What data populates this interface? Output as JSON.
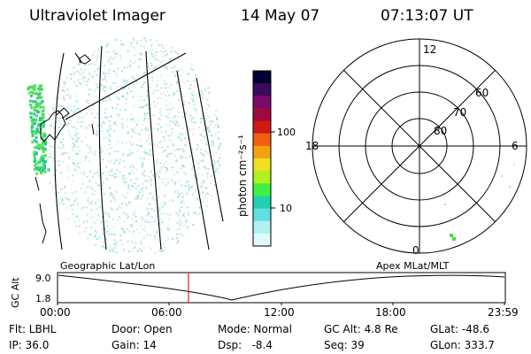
{
  "header": {
    "instrument": "Ultraviolet Imager",
    "date": "14 May 07",
    "time": "07:13:07 UT"
  },
  "colorbar": {
    "unit_label": "photon cm⁻²s⁻¹",
    "ticks": [
      "100",
      "10"
    ],
    "colors": [
      "#000033",
      "#3b0a5c",
      "#7a0a6a",
      "#a00a3a",
      "#d01a10",
      "#f06010",
      "#f4a010",
      "#f0e020",
      "#b0f020",
      "#40f040",
      "#20d0b0",
      "#60e0e0",
      "#b0f0f0",
      "#e0fafa"
    ]
  },
  "polar": {
    "mlt_labels": {
      "top": "12",
      "left": "18",
      "right": "6",
      "bottom": "0"
    },
    "lat_labels": [
      "60",
      "70",
      "80"
    ]
  },
  "orbit": {
    "left_label": "Geographic Lat/Lon",
    "right_label": "Apex  MLat/MLT",
    "axis_label": "GC Alt",
    "y_ticks": [
      "9.0",
      "1.8"
    ],
    "x_ticks": [
      "00:00",
      "06:00",
      "12:00",
      "18:00",
      "23:59"
    ]
  },
  "info": {
    "row1": {
      "flt": "Flt: LBHL",
      "door": "Door: Open",
      "mode": "Mode: Normal",
      "gcalt": "GC Alt: 4.8 Re",
      "glat": "GLat: -48.6"
    },
    "row2": {
      "ip": "IP: 36.0",
      "gain": "Gain: 14",
      "dsp": "Dsp:   -8.4",
      "seq": "Seq: 39",
      "glon": "GLon: 333.7"
    }
  }
}
